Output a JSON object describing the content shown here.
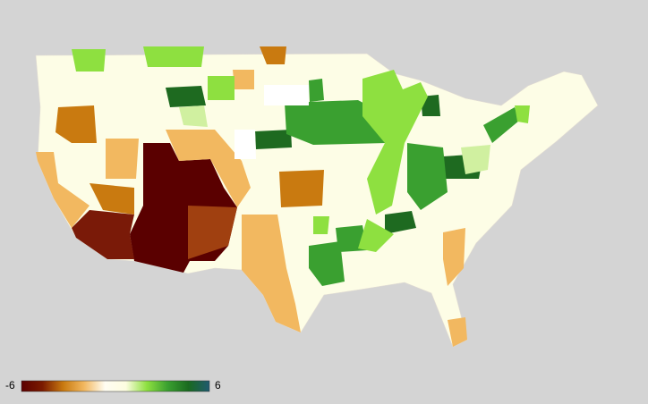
{
  "map": {
    "legend": {
      "min": -6,
      "max": 6,
      "colors": [
        "#5c0000",
        "#7a1a00",
        "#c97a10",
        "#f2b860",
        "#fffdf2",
        "#fdfde0",
        "#8ee040",
        "#3aa030",
        "#1a6a20",
        "#1f5a70"
      ]
    }
  }
}
